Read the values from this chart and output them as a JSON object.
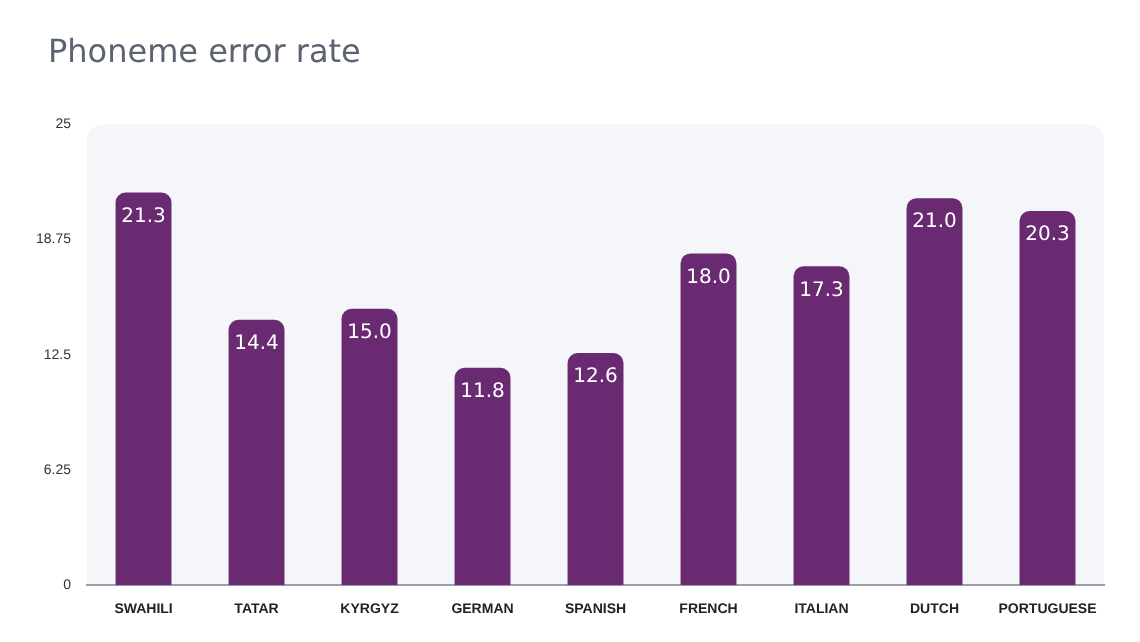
{
  "chart_data": {
    "type": "bar",
    "title": "Phoneme error rate",
    "categories": [
      "SWAHILI",
      "TATAR",
      "KYRGYZ",
      "GERMAN",
      "SPANISH",
      "FRENCH",
      "ITALIAN",
      "DUTCH",
      "PORTUGUESE"
    ],
    "values": [
      21.3,
      14.4,
      15.0,
      11.8,
      12.6,
      18.0,
      17.3,
      21.0,
      20.3
    ],
    "value_labels": [
      "21.3",
      "14.4",
      "15.0",
      "11.8",
      "12.6",
      "18.0",
      "17.3",
      "21.0",
      "20.3"
    ],
    "color": "#6a2a72",
    "ylim": [
      0,
      25
    ],
    "yticks": [
      0,
      6.25,
      12.5,
      18.75,
      25
    ],
    "grid": false,
    "legend": false
  }
}
